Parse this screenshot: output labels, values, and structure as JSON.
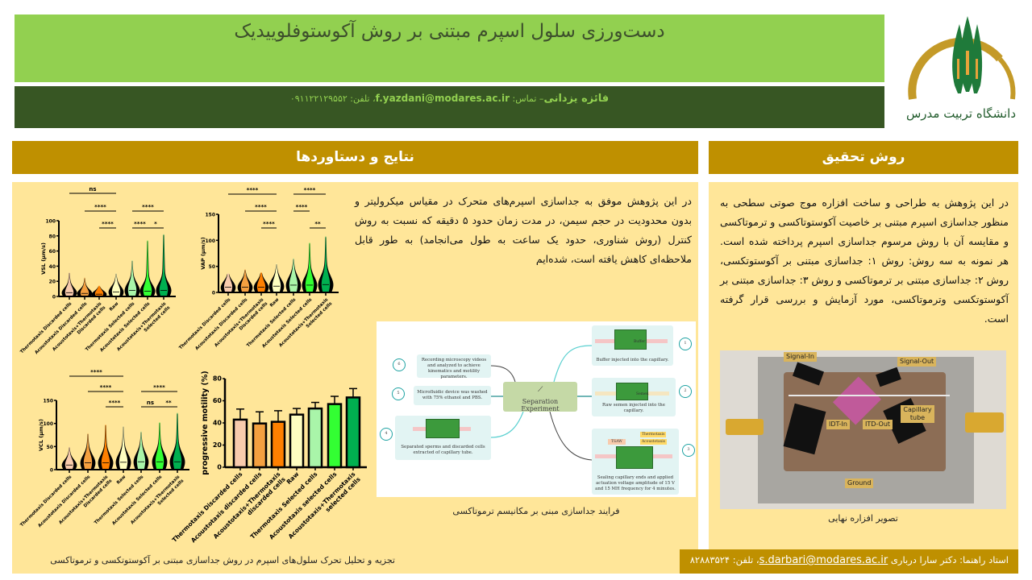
{
  "header": {
    "title": "دست‌ورزی سلول اسپرم مبتنی بر روش آکوستوفلوییدیک",
    "author_name": "فائزه یزدانی",
    "author_contact_prefix": "– تماس: ",
    "author_email": "f.yazdani@modares.ac.ir",
    "author_phone": "، تلفن: ۰۹۱۱۲۲۱۲۹۵۵۲",
    "logo_text": "دانشگاه تربیت مدرس"
  },
  "sections": {
    "results_title": "نتایج و دستاوردها",
    "method_title": "روش تحقیق"
  },
  "results": {
    "paragraph": "در این پژوهش موفق به جداسازی اسپرم‌های متحرک در مقیاس میکرولیتر و بدون محدودیت در حجم سیمن، در مدت زمان حدود ۵ دقیقه که نسبت به روش کنترل (روش شناوری، حدود یک ساعت به طول می‌انجامد) به طور قابل ملاحظه‌ای کاهش یافته است، شده‌ایم",
    "diagram_caption": "فرایند جداسازی مبنی بر مکانیسم ترموتاکسی",
    "charts_caption": "تجزیه و تحلیل تحرک سلول‌های اسپرم در روش جداسازی مبتنی بر آکوستوتکسی و ترموتاکسی",
    "diagram": {
      "center": "Separation Experiment",
      "steps": [
        {
          "num": "1",
          "text": "Buffer injected into the capillary."
        },
        {
          "num": "2",
          "text": "Raw semen injected into the capillary."
        },
        {
          "num": "3",
          "text": "Sealing capillary ends and applied actuation voltage amplitude of 15 V and 15 MH frequency for 4 minutes."
        },
        {
          "num": "4",
          "text": "Separated sperms and discarded cells extracted of capillary tube."
        },
        {
          "num": "5",
          "text": "Microfluidic device was washed with 75% ethanol and PBS."
        },
        {
          "num": "6",
          "text": "Recording microscopy videos and analyzed to achieve kinematics and motility parameters."
        }
      ],
      "tags": {
        "buffer": "Buffer",
        "semen": "Semen",
        "thermotaxis": "Thermotaxis",
        "acoustotaxis": "Acoustotaxis",
        "tsaw": "TSAW"
      }
    }
  },
  "method": {
    "paragraph": "در این پژوهش به طراحی و ساخت افزاره موج صوتی سطحی به منظور جداسازی اسپرم مبتنی بر خاصیت آکوستوتاکسی و ترموتاکسی و مقایسه آن با روش مرسوم جداسازی اسپرم پرداخته شده است. هر نمونه به سه روش: روش ۱: جداسازی مبتنی بر آکوستوتکسی، روش ۲: جداسازی مبتنی بر ترموتاکسی و روش ۳: جداسازی مبتنی بر آکوستوتکسی وترموتاکسی، مورد آزمایش و بررسی قرار گرفته است.",
    "photo_caption": "تصویر افزاره نهایی",
    "photo_labels": {
      "signal_in": "Signal-In",
      "signal_out": "Signal-Out",
      "capillary": "Capillary tube",
      "idt_in": "IDT-In",
      "itd_out": "ITD-Out",
      "ground": "Ground"
    }
  },
  "advisor": {
    "label": "استاد راهنما: دکتر سارا درباری",
    "email": "s.darbari@modares.ac.ir",
    "phone": "، تلفن: ۸۲۸۸۳۵۲۴"
  },
  "colors": {
    "title_bg": "#92d050",
    "author_bg": "#375623",
    "section_bg": "#bf9000",
    "panel_bg": "#ffe699",
    "series": [
      "#f8cbad",
      "#f4a040",
      "#ff8000",
      "#ffffc0",
      "#a9f5a9",
      "#33ff33",
      "#00b050"
    ]
  },
  "chart_data": [
    {
      "type": "violin",
      "ylabel": "VSL (µm/s)",
      "ylim": [
        0,
        100
      ],
      "yticks": [
        0,
        20,
        40,
        60,
        80,
        100
      ],
      "categories": [
        [
          "Thermotaxis Discarded cells"
        ],
        [
          "Acoustotaxis Discarded cells"
        ],
        [
          "Acoustotaxis+Thermotaxis",
          "Discarded cells"
        ],
        [
          "Raw"
        ],
        [
          "Thermotaxis Selected cells"
        ],
        [
          "Acoustotaxis Selected cells"
        ],
        [
          "Acoustotaxis+Thermotaxis",
          "Selected cells"
        ]
      ],
      "max": [
        31,
        24,
        13,
        30,
        47,
        73,
        81
      ],
      "median": [
        5,
        4,
        3,
        6,
        8,
        7,
        8
      ],
      "significance": [
        {
          "from": 0,
          "to": 3,
          "label": "ns",
          "level": 3
        },
        {
          "from": 1,
          "to": 3,
          "label": "****",
          "level": 2
        },
        {
          "from": 2,
          "to": 3,
          "label": "****",
          "level": 1
        },
        {
          "from": 4,
          "to": 6,
          "label": "****",
          "level": 2
        },
        {
          "from": 4,
          "to": 5,
          "label": "****",
          "level": 1
        },
        {
          "from": 5,
          "to": 6,
          "label": "*",
          "level": 1
        }
      ]
    },
    {
      "type": "violin",
      "ylabel": "VAP (µm/s)",
      "ylim": [
        0,
        150
      ],
      "yticks": [
        0,
        50,
        100,
        150
      ],
      "categories": [
        [
          "Thermotaxis Discarded cells"
        ],
        [
          "Acoustotaxis Discarded cells"
        ],
        [
          "Acoustotaxis+Thermotaxis",
          "Discarded cells"
        ],
        [
          "Raw"
        ],
        [
          "Thermotaxis Selected cells"
        ],
        [
          "Acoustotaxis Selected cells"
        ],
        [
          "Acoustotaxis+Thermotaxis",
          "Selected cells"
        ]
      ],
      "max": [
        35,
        43,
        37,
        54,
        64,
        94,
        106
      ],
      "median": [
        10,
        10,
        10,
        12,
        14,
        14,
        15
      ],
      "significance": [
        {
          "from": 0,
          "to": 3,
          "label": "****",
          "level": 3
        },
        {
          "from": 1,
          "to": 3,
          "label": "****",
          "level": 2
        },
        {
          "from": 2,
          "to": 3,
          "label": "****",
          "level": 1
        },
        {
          "from": 4,
          "to": 6,
          "label": "****",
          "level": 3
        },
        {
          "from": 4,
          "to": 5,
          "label": "****",
          "level": 2
        },
        {
          "from": 5,
          "to": 6,
          "label": "**",
          "level": 1
        }
      ]
    },
    {
      "type": "violin",
      "ylabel": "VCL (µm/s)",
      "ylim": [
        0,
        150
      ],
      "yticks": [
        0,
        50,
        100,
        150
      ],
      "categories": [
        [
          "Thermotaxis Discarded cells"
        ],
        [
          "Acoustotaxis Discarded cells"
        ],
        [
          "Acoustotaxis+Thermotaxis",
          "Discarded cells"
        ],
        [
          "Raw"
        ],
        [
          "Thermotaxis Selected cells"
        ],
        [
          "Acoustotaxis Selected cells"
        ],
        [
          "Acoustotaxis+Thermotaxis",
          "Selected cells"
        ]
      ],
      "max": [
        48,
        77,
        96,
        93,
        81,
        101,
        121
      ],
      "median": [
        10,
        15,
        15,
        16,
        17,
        17,
        17
      ],
      "significance": [
        {
          "from": 0,
          "to": 3,
          "label": "****",
          "level": 3
        },
        {
          "from": 1,
          "to": 3,
          "label": "****",
          "level": 2
        },
        {
          "from": 2,
          "to": 3,
          "label": "****",
          "level": 1
        },
        {
          "from": 4,
          "to": 6,
          "label": "****",
          "level": 2
        },
        {
          "from": 4,
          "to": 5,
          "label": "ns",
          "level": 1
        },
        {
          "from": 5,
          "to": 6,
          "label": "**",
          "level": 1
        }
      ]
    },
    {
      "type": "bar",
      "ylabel": "progressive motility (%)",
      "ylim": [
        0,
        80
      ],
      "yticks": [
        0,
        20,
        40,
        60,
        80
      ],
      "categories": [
        [
          "Thermotaxis Discarded cells"
        ],
        [
          "Acoustotaxis discarded cells"
        ],
        [
          "Acoustotaxis+Thermotaxis",
          "discarded cells"
        ],
        [
          "Raw"
        ],
        [
          "Thermotaxis Selected cells"
        ],
        [
          "Acoustotaxis selected cells"
        ],
        [
          "Acoustotaxis+Thermotaxis",
          "selected cells"
        ]
      ],
      "values": [
        43,
        39.5,
        41,
        47.5,
        53,
        57,
        63
      ],
      "error": [
        9.5,
        10.5,
        10,
        5.5,
        5.5,
        7,
        8
      ]
    }
  ]
}
